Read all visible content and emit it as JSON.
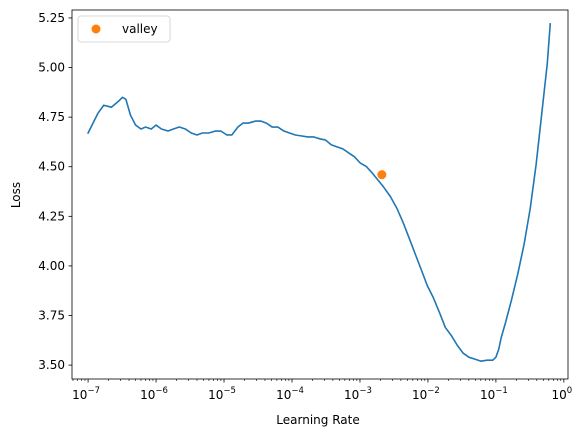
{
  "chart_data": {
    "type": "line",
    "title": "",
    "xlabel": "Learning Rate",
    "ylabel": "Loss",
    "x_scale": "log",
    "xlim": [
      5.8e-08,
      1.15
    ],
    "ylim": [
      3.43,
      5.29
    ],
    "grid": false,
    "legend_position": "top-left",
    "x_ticks": [
      {
        "value": 1e-07,
        "base": "10",
        "exp": "−7"
      },
      {
        "value": 1e-06,
        "base": "10",
        "exp": "−6"
      },
      {
        "value": 1e-05,
        "base": "10",
        "exp": "−5"
      },
      {
        "value": 0.0001,
        "base": "10",
        "exp": "−4"
      },
      {
        "value": 0.001,
        "base": "10",
        "exp": "−3"
      },
      {
        "value": 0.01,
        "base": "10",
        "exp": "−2"
      },
      {
        "value": 0.1,
        "base": "10",
        "exp": "−1"
      },
      {
        "value": 1,
        "base": "10",
        "exp": "0"
      }
    ],
    "y_ticks": [
      {
        "value": 3.5,
        "label": "3.50"
      },
      {
        "value": 3.75,
        "label": "3.75"
      },
      {
        "value": 4.0,
        "label": "4.00"
      },
      {
        "value": 4.25,
        "label": "4.25"
      },
      {
        "value": 4.5,
        "label": "4.50"
      },
      {
        "value": 4.75,
        "label": "4.75"
      },
      {
        "value": 5.0,
        "label": "5.00"
      },
      {
        "value": 5.25,
        "label": "5.25"
      }
    ],
    "series": [
      {
        "color": "#1f77b4",
        "x": [
          1e-07,
          1.4e-07,
          1.7e-07,
          2.2e-07,
          2.8e-07,
          3.2e-07,
          3.6e-07,
          4.2e-07,
          5e-07,
          6e-07,
          7e-07,
          8.5e-07,
          1e-06,
          1.2e-06,
          1.5e-06,
          1.8e-06,
          2.2e-06,
          2.7e-06,
          3.3e-06,
          4e-06,
          4.8e-06,
          6e-06,
          7.5e-06,
          9e-06,
          1.1e-05,
          1.3e-05,
          1.6e-05,
          1.9e-05,
          2.3e-05,
          2.9e-05,
          3.5e-05,
          4.2e-05,
          5.1e-05,
          6.2e-05,
          7.6e-05,
          9.2e-05,
          0.000112,
          0.00014,
          0.00017,
          0.00021,
          0.00026,
          0.00031,
          0.00038,
          0.00046,
          0.00056,
          0.00068,
          0.00083,
          0.001,
          0.00125,
          0.0015,
          0.0022,
          0.0028,
          0.0035,
          0.0043,
          0.0053,
          0.0065,
          0.008,
          0.0098,
          0.012,
          0.015,
          0.018,
          0.022,
          0.027,
          0.033,
          0.04,
          0.049,
          0.06,
          0.074,
          0.09,
          0.1,
          0.11,
          0.12,
          0.14,
          0.17,
          0.21,
          0.26,
          0.32,
          0.39,
          0.47,
          0.57,
          0.63
        ],
        "y": [
          4.67,
          4.77,
          4.81,
          4.8,
          4.83,
          4.85,
          4.84,
          4.76,
          4.71,
          4.69,
          4.7,
          4.69,
          4.71,
          4.69,
          4.68,
          4.69,
          4.7,
          4.69,
          4.67,
          4.66,
          4.67,
          4.67,
          4.68,
          4.68,
          4.66,
          4.66,
          4.7,
          4.72,
          4.72,
          4.73,
          4.73,
          4.72,
          4.7,
          4.7,
          4.68,
          4.67,
          4.66,
          4.655,
          4.65,
          4.65,
          4.64,
          4.635,
          4.61,
          4.6,
          4.59,
          4.57,
          4.55,
          4.52,
          4.5,
          4.47,
          4.4,
          4.35,
          4.29,
          4.22,
          4.14,
          4.06,
          3.98,
          3.9,
          3.84,
          3.76,
          3.69,
          3.65,
          3.6,
          3.56,
          3.54,
          3.53,
          3.52,
          3.525,
          3.525,
          3.54,
          3.58,
          3.64,
          3.72,
          3.83,
          3.96,
          4.11,
          4.29,
          4.51,
          4.76,
          5.02,
          5.22
        ]
      },
      {
        "name": "valley",
        "type": "scatter",
        "color": "#ff7f0e",
        "x": [
          0.0021
        ],
        "y": [
          4.46
        ]
      }
    ]
  }
}
